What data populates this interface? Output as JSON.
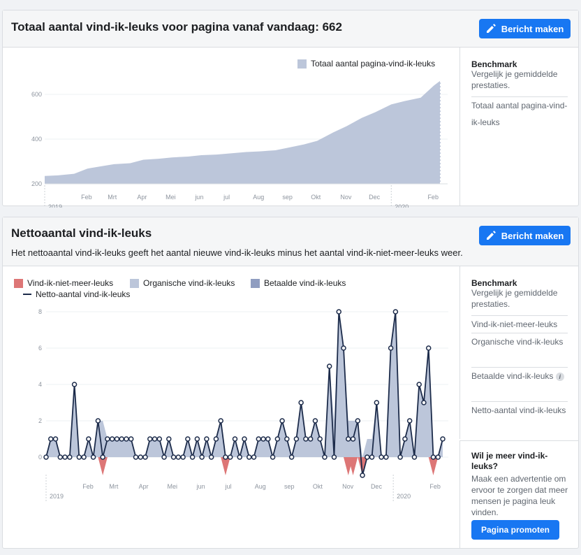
{
  "card1": {
    "title": "Totaal aantal vind-ik-leuks voor pagina vanaf vandaag: 662",
    "button_label": "Bericht maken",
    "legend": "Totaal aantal pagina-vind-ik-leuks",
    "side": {
      "title": "Benchmark",
      "sub": "Vergelijk je gemiddelde prestaties.",
      "link": "Totaal aantal pagina-vind-ik-leuks"
    }
  },
  "card2": {
    "title": "Nettoaantal vind-ik-leuks",
    "description": "Het nettoaantal vind-ik-leuks geeft het aantal nieuwe vind-ik-leuks minus het aantal vind-ik-niet-meer-leuks weer.",
    "button_label": "Bericht maken",
    "legend": [
      "Vind-ik-niet-meer-leuks",
      "Organische vind-ik-leuks",
      "Betaalde vind-ik-leuks",
      "Netto-aantal vind-ik-leuks"
    ],
    "side": {
      "title": "Benchmark",
      "sub": "Vergelijk je gemiddelde prestaties.",
      "links": [
        "Vind-ik-niet-meer-leuks",
        "Organische vind-ik-leuks",
        "Betaalde vind-ik-leuks",
        "Netto-aantal vind-ik-leuks"
      ]
    },
    "promo": {
      "title": "Wil je meer vind-ik-leuks?",
      "text": "Maak een advertentie om ervoor te zorgen dat meer mensen je pagina leuk vinden.",
      "button": "Pagina promoten"
    }
  },
  "colors": {
    "accent": "#1877f2",
    "area": "#bcc6da",
    "paid": "#8f9dc0",
    "unlike": "#dd7676",
    "net": "#1c2b4a"
  },
  "chart_data": [
    {
      "type": "area",
      "series": [
        {
          "name": "Totaal aantal pagina-vind-ik-leuks",
          "x": [
            "2019-01-01",
            "2019-01-15",
            "2019-02-01",
            "2019-02-15",
            "2019-03-01",
            "2019-03-15",
            "2019-04-01",
            "2019-04-15",
            "2019-05-01",
            "2019-05-15",
            "2019-06-01",
            "2019-06-15",
            "2019-07-01",
            "2019-07-15",
            "2019-08-01",
            "2019-08-15",
            "2019-09-01",
            "2019-09-15",
            "2019-10-01",
            "2019-10-15",
            "2019-11-01",
            "2019-11-15",
            "2019-12-01",
            "2019-12-15",
            "2020-01-01",
            "2020-01-15",
            "2020-02-01",
            "2020-02-15",
            "2020-02-22"
          ],
          "values": [
            235,
            238,
            245,
            268,
            278,
            288,
            292,
            308,
            312,
            318,
            322,
            328,
            331,
            336,
            342,
            345,
            350,
            362,
            376,
            392,
            430,
            458,
            495,
            520,
            555,
            570,
            585,
            640,
            662
          ]
        }
      ],
      "x_ticks": [
        "Feb",
        "Mrt",
        "Apr",
        "Mei",
        "jun",
        "jul",
        "Aug",
        "sep",
        "Okt",
        "Nov",
        "Dec",
        "Feb"
      ],
      "year_labels": [
        "2019",
        "2020"
      ],
      "y_ticks": [
        200,
        400,
        600
      ],
      "ylim": [
        200,
        700
      ],
      "grid": true,
      "legend": "top-right"
    },
    {
      "type": "line",
      "categories_start": "2019-01-01",
      "series": [
        {
          "name": "Netto-aantal vind-ik-leuks",
          "values": [
            0,
            1,
            1,
            0,
            0,
            0,
            4,
            0,
            0,
            1,
            0,
            2,
            0,
            1,
            1,
            1,
            1,
            1,
            1,
            0,
            0,
            0,
            1,
            1,
            1,
            0,
            1,
            0,
            0,
            0,
            1,
            0,
            1,
            0,
            1,
            0,
            1,
            2,
            0,
            0,
            1,
            0,
            1,
            0,
            0,
            1,
            1,
            1,
            0,
            1,
            2,
            1,
            0,
            1,
            3,
            1,
            1,
            2,
            1,
            0,
            5,
            0,
            8,
            6,
            1,
            1,
            2,
            -1,
            0,
            0,
            3,
            0,
            0,
            6,
            8,
            0,
            1,
            2,
            0,
            4,
            3,
            6,
            0,
            0,
            1
          ]
        },
        {
          "name": "Organische vind-ik-leuks",
          "values": [
            0,
            1,
            1,
            0,
            0,
            0,
            4,
            0,
            0,
            1,
            0,
            2,
            2,
            1,
            1,
            1,
            1,
            1,
            1,
            0,
            0,
            0,
            1,
            1,
            1,
            0,
            1,
            0,
            0,
            0,
            1,
            0,
            1,
            0,
            1,
            0,
            1,
            2,
            0,
            0,
            1,
            0,
            1,
            0,
            0,
            1,
            1,
            1,
            0,
            1,
            2,
            1,
            0,
            1,
            3,
            1,
            1,
            2,
            1,
            0,
            5,
            2,
            8,
            6,
            2,
            2,
            2,
            0,
            1,
            1,
            3,
            0,
            0,
            6,
            8,
            0,
            1,
            2,
            0,
            4,
            3,
            6,
            0,
            0,
            1
          ]
        },
        {
          "name": "Vind-ik-niet-meer-leuks",
          "values": [
            0,
            0,
            0,
            0,
            0,
            0,
            0,
            0,
            0,
            0,
            0,
            0,
            -1,
            0,
            0,
            0,
            0,
            0,
            0,
            0,
            0,
            0,
            0,
            0,
            0,
            0,
            0,
            0,
            0,
            0,
            0,
            0,
            0,
            0,
            0,
            0,
            0,
            0,
            -1,
            0,
            0,
            0,
            0,
            0,
            0,
            0,
            0,
            0,
            0,
            0,
            0,
            0,
            0,
            0,
            0,
            0,
            0,
            0,
            0,
            0,
            0,
            0,
            0,
            0,
            -1,
            -1,
            0,
            -1,
            0,
            0,
            0,
            0,
            0,
            0,
            0,
            0,
            0,
            0,
            0,
            0,
            0,
            0,
            -1,
            0,
            0
          ]
        }
      ],
      "x_ticks": [
        "Feb",
        "Mrt",
        "Apr",
        "Mei",
        "jun",
        "jul",
        "Aug",
        "sep",
        "Okt",
        "Nov",
        "Dec",
        "Feb"
      ],
      "year_labels": [
        "2019",
        "2020"
      ],
      "y_ticks": [
        0,
        2,
        4,
        6,
        8
      ],
      "ylim": [
        -1,
        8
      ],
      "grid": true,
      "legend": "top-left"
    }
  ]
}
